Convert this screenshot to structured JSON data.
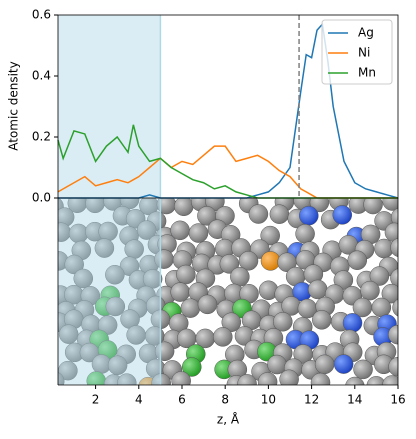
{
  "chart_data": {
    "type": "line",
    "ylabel": "Atomic density",
    "xlabel": "z, Å",
    "x": [
      0.26,
      0.5,
      1,
      1.5,
      2,
      2.5,
      3,
      3.5,
      3.75,
      4,
      4.5,
      5,
      5.5,
      6,
      6.5,
      7,
      7.5,
      8,
      8.5,
      9,
      9.5,
      10,
      10.5,
      11,
      11.5,
      11.75,
      12,
      12.25,
      12.5,
      12.75,
      13,
      13.5,
      14,
      14.5,
      15,
      15.5,
      16
    ],
    "series": [
      {
        "name": "Ag",
        "color": "#1f77b4",
        "values": [
          0,
          0,
          0,
          0,
          0,
          0,
          0,
          0,
          0,
          0,
          0.01,
          0,
          0,
          0,
          0,
          0,
          0,
          0,
          0,
          0,
          0.01,
          0.02,
          0.05,
          0.1,
          0.35,
          0.47,
          0.46,
          0.55,
          0.57,
          0.45,
          0.3,
          0.12,
          0.05,
          0.03,
          0.02,
          0.01,
          0
        ]
      },
      {
        "name": "Ni",
        "color": "#ff7f0e",
        "values": [
          0.02,
          0.03,
          0.05,
          0.07,
          0.04,
          0.05,
          0.06,
          0.05,
          0.06,
          0.07,
          0.1,
          0.13,
          0.1,
          0.12,
          0.11,
          0.14,
          0.17,
          0.17,
          0.12,
          0.13,
          0.14,
          0.12,
          0.09,
          0.07,
          0.03,
          0.02,
          0.01,
          0,
          0,
          0,
          0,
          0,
          0,
          0,
          0,
          0,
          0
        ]
      },
      {
        "name": "Mn",
        "color": "#2ca02c",
        "values": [
          0.19,
          0.13,
          0.22,
          0.21,
          0.12,
          0.17,
          0.2,
          0.15,
          0.24,
          0.17,
          0.12,
          0.13,
          0.1,
          0.08,
          0.06,
          0.05,
          0.03,
          0.04,
          0.02,
          0.01,
          0,
          0,
          0,
          0,
          0,
          0,
          0,
          0,
          0,
          0,
          0,
          0,
          0,
          0,
          0,
          0,
          0
        ]
      }
    ],
    "xlim": [
      0.26,
      16
    ],
    "xticks": [
      2,
      4,
      6,
      8,
      10,
      12,
      14,
      16
    ],
    "ylim": [
      0,
      0.6
    ],
    "yticks": [
      {
        "value": 0,
        "label": "0.0"
      },
      {
        "value": 0.2,
        "label": "0.2"
      },
      {
        "value": 0.4,
        "label": "0.4"
      },
      {
        "value": 0.6,
        "label": "0.6"
      }
    ],
    "shade_x": [
      0.26,
      5
    ],
    "vline_x": 11.42,
    "legend": "upper right"
  }
}
